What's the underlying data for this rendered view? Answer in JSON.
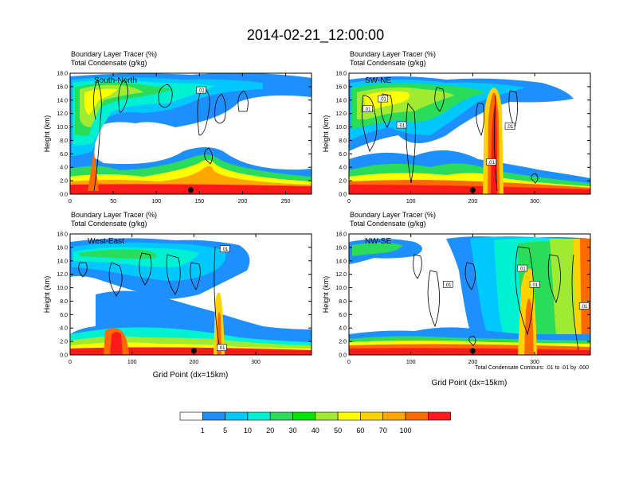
{
  "figure": {
    "title": "2014-02-21_12:00:00",
    "contour_note": "Total Condensate Contours: .01 to .01 by .000"
  },
  "colorbar": {
    "labels": [
      "1",
      "5",
      "10",
      "20",
      "30",
      "40",
      "50",
      "60",
      "70",
      "100"
    ],
    "colors": [
      "#ffffff",
      "#1e8fff",
      "#00c8ff",
      "#00f0d2",
      "#2adc5a",
      "#00e600",
      "#a0eb32",
      "#ffff00",
      "#ffd200",
      "#ffa600",
      "#ff6a00",
      "#ff1a1a"
    ]
  },
  "chart_data": [
    {
      "type": "heatmap",
      "panel": "South-North",
      "subtitle_line1": "Boundary Layer Tracer   (%)",
      "subtitle_line2": "Total Condensate   (g/kg)",
      "ylabel": "Height (km)",
      "xlabel": "",
      "xlim": [
        0,
        280
      ],
      "ylim": [
        0,
        18
      ],
      "xticks": [
        0,
        50,
        100,
        150,
        200,
        250
      ],
      "yticks": [
        "0.0",
        "2.0",
        "4.0",
        "6.0",
        "8.0",
        "10.0",
        "12.0",
        "14.0",
        "16.0",
        "18.0"
      ],
      "markers": [
        {
          "x": 140,
          "y": 0.6
        }
      ],
      "contour_labels": [
        {
          "text": ".01",
          "x": 152,
          "y": 15.5
        }
      ]
    },
    {
      "type": "heatmap",
      "panel": "SW-NE",
      "subtitle_line1": "Boundary Layer Tracer   (%)",
      "subtitle_line2": "Total Condensate   (g/kg)",
      "ylabel": "Height (km)",
      "xlabel": "",
      "xlim": [
        0,
        390
      ],
      "ylim": [
        0,
        18
      ],
      "xticks": [
        0,
        100,
        200,
        300
      ],
      "yticks": [
        "0.0",
        "2.0",
        "4.0",
        "6.0",
        "8.0",
        "10.0",
        "12.0",
        "14.0",
        "16.0",
        "18.0"
      ],
      "markers": [
        {
          "x": 200,
          "y": 0.6
        }
      ],
      "contour_labels": [
        {
          "text": ".01",
          "x": 55,
          "y": 14.2
        },
        {
          "text": ".01",
          "x": 30,
          "y": 12.7
        },
        {
          "text": ".01",
          "x": 85,
          "y": 10.3
        },
        {
          "text": ".01",
          "x": 260,
          "y": 10.1
        },
        {
          "text": ".01",
          "x": 230,
          "y": 4.8
        }
      ]
    },
    {
      "type": "heatmap",
      "panel": "West-East",
      "subtitle_line1": "Boundary Layer Tracer   (%)",
      "subtitle_line2": "Total Condensate   (g/kg)",
      "ylabel": "Height (km)",
      "xlabel": "Grid Point (dx=15km)",
      "xlim": [
        0,
        390
      ],
      "ylim": [
        0,
        18
      ],
      "xticks": [
        0,
        100,
        200,
        300
      ],
      "yticks": [
        "0.0",
        "2.0",
        "4.0",
        "6.0",
        "8.0",
        "10.0",
        "12.0",
        "14.0",
        "16.0",
        "18.0"
      ],
      "markers": [
        {
          "x": 200,
          "y": 0.6
        }
      ],
      "contour_labels": [
        {
          "text": ".01",
          "x": 250,
          "y": 15.8
        },
        {
          "text": ".01",
          "x": 245,
          "y": 1.1
        }
      ]
    },
    {
      "type": "heatmap",
      "panel": "NW-SE",
      "subtitle_line1": "Boundary Layer Tracer   (%)",
      "subtitle_line2": "Total Condensate   (g/kg)",
      "ylabel": "Height (km)",
      "xlabel": "Grid Point (dx=15km)",
      "xlim": [
        0,
        390
      ],
      "ylim": [
        0,
        18
      ],
      "xticks": [
        0,
        100,
        200,
        300
      ],
      "yticks": [
        "0.0",
        "2.0",
        "4.0",
        "6.0",
        "8.0",
        "10.0",
        "12.0",
        "14.0",
        "16.0",
        "18.0"
      ],
      "markers": [
        {
          "x": 200,
          "y": 0.6
        }
      ],
      "contour_labels": [
        {
          "text": ".01",
          "x": 280,
          "y": 12.9
        },
        {
          "text": ".01",
          "x": 300,
          "y": 10.5
        },
        {
          "text": ".01",
          "x": 160,
          "y": 10.5
        },
        {
          "text": ".01",
          "x": 380,
          "y": 7.3
        }
      ]
    }
  ]
}
